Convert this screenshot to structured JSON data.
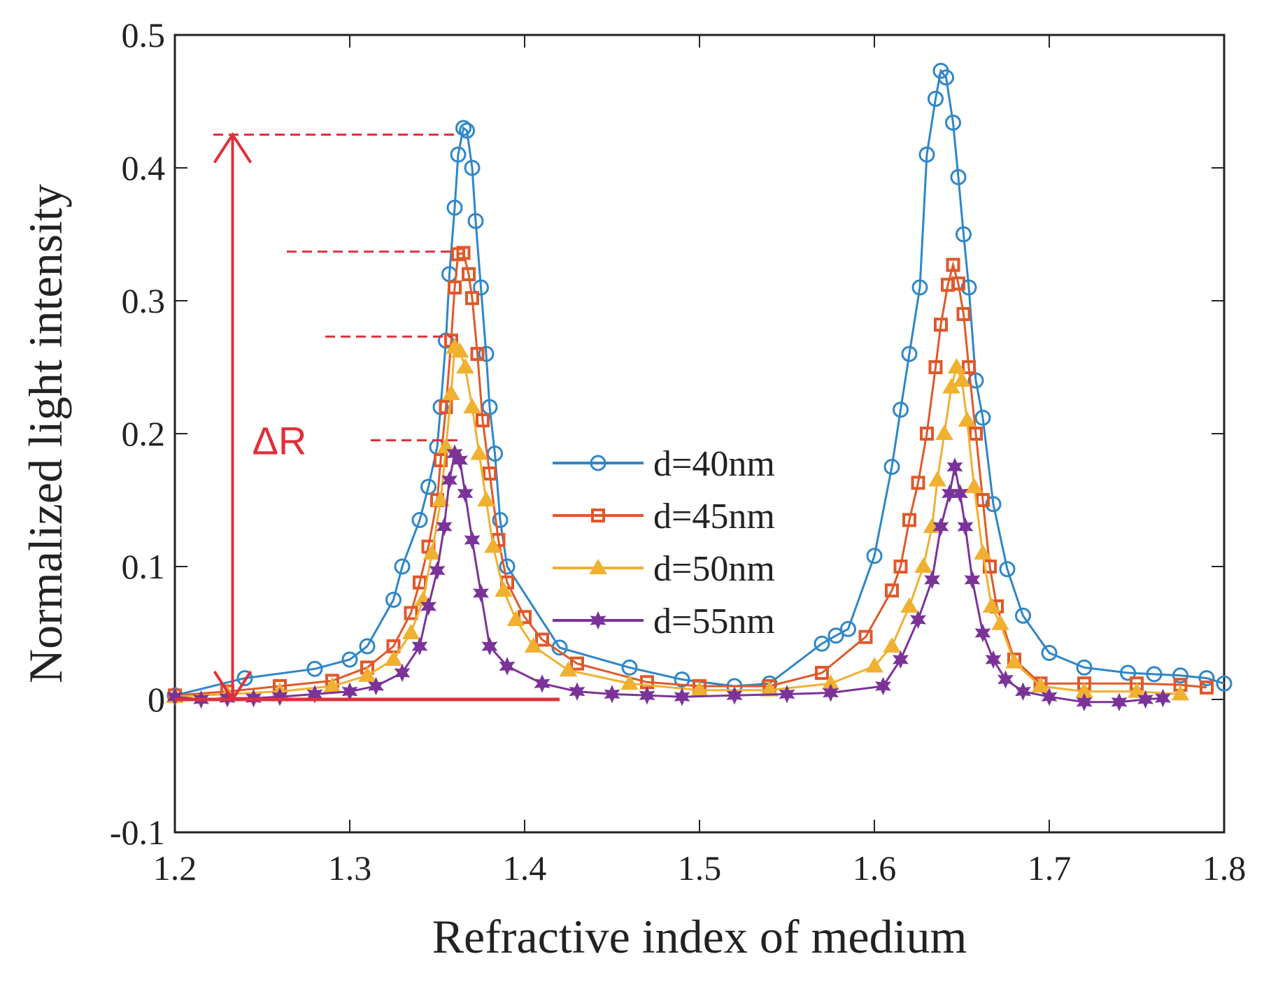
{
  "chart_data": {
    "type": "line",
    "title": "",
    "xlabel": "Refractive index of medium",
    "ylabel": "Normalized light intensity",
    "xlim": [
      1.2,
      1.8
    ],
    "ylim": [
      -0.1,
      0.5
    ],
    "x_ticks": [
      "1.2",
      "1.3",
      "1.4",
      "1.5",
      "1.6",
      "1.7",
      "1.8"
    ],
    "y_ticks": [
      "-0.1",
      "0",
      "0.1",
      "0.2",
      "0.3",
      "0.4",
      "0.5"
    ],
    "grid": false,
    "legend_position": "center",
    "series": [
      {
        "name": "d=40nm",
        "color": "#2e86c8",
        "marker": "circle",
        "points": [
          [
            1.2,
            0.003
          ],
          [
            1.24,
            0.016
          ],
          [
            1.28,
            0.023
          ],
          [
            1.3,
            0.03
          ],
          [
            1.31,
            0.04
          ],
          [
            1.325,
            0.075
          ],
          [
            1.33,
            0.1
          ],
          [
            1.34,
            0.135
          ],
          [
            1.345,
            0.16
          ],
          [
            1.35,
            0.19
          ],
          [
            1.352,
            0.22
          ],
          [
            1.355,
            0.27
          ],
          [
            1.357,
            0.32
          ],
          [
            1.36,
            0.37
          ],
          [
            1.362,
            0.41
          ],
          [
            1.365,
            0.43
          ],
          [
            1.367,
            0.428
          ],
          [
            1.37,
            0.4
          ],
          [
            1.372,
            0.36
          ],
          [
            1.375,
            0.31
          ],
          [
            1.378,
            0.26
          ],
          [
            1.38,
            0.22
          ],
          [
            1.383,
            0.185
          ],
          [
            1.386,
            0.135
          ],
          [
            1.39,
            0.1
          ],
          [
            1.42,
            0.039
          ],
          [
            1.46,
            0.024
          ],
          [
            1.49,
            0.015
          ],
          [
            1.52,
            0.01
          ],
          [
            1.54,
            0.012
          ],
          [
            1.57,
            0.042
          ],
          [
            1.578,
            0.048
          ],
          [
            1.585,
            0.053
          ],
          [
            1.6,
            0.108
          ],
          [
            1.61,
            0.175
          ],
          [
            1.615,
            0.218
          ],
          [
            1.62,
            0.26
          ],
          [
            1.626,
            0.31
          ],
          [
            1.63,
            0.41
          ],
          [
            1.635,
            0.452
          ],
          [
            1.638,
            0.473
          ],
          [
            1.641,
            0.468
          ],
          [
            1.645,
            0.434
          ],
          [
            1.648,
            0.393
          ],
          [
            1.651,
            0.35
          ],
          [
            1.654,
            0.31
          ],
          [
            1.658,
            0.24
          ],
          [
            1.662,
            0.212
          ],
          [
            1.668,
            0.147
          ],
          [
            1.676,
            0.098
          ],
          [
            1.685,
            0.063
          ],
          [
            1.7,
            0.035
          ],
          [
            1.72,
            0.024
          ],
          [
            1.745,
            0.02
          ],
          [
            1.76,
            0.019
          ],
          [
            1.775,
            0.018
          ],
          [
            1.79,
            0.016
          ],
          [
            1.8,
            0.012
          ]
        ]
      },
      {
        "name": "d=45nm",
        "color": "#e0582a",
        "marker": "square",
        "points": [
          [
            1.2,
            0.003
          ],
          [
            1.23,
            0.006
          ],
          [
            1.26,
            0.01
          ],
          [
            1.29,
            0.014
          ],
          [
            1.31,
            0.024
          ],
          [
            1.325,
            0.04
          ],
          [
            1.335,
            0.065
          ],
          [
            1.34,
            0.088
          ],
          [
            1.345,
            0.115
          ],
          [
            1.35,
            0.15
          ],
          [
            1.352,
            0.18
          ],
          [
            1.355,
            0.22
          ],
          [
            1.358,
            0.27
          ],
          [
            1.36,
            0.31
          ],
          [
            1.362,
            0.335
          ],
          [
            1.365,
            0.336
          ],
          [
            1.368,
            0.32
          ],
          [
            1.37,
            0.302
          ],
          [
            1.373,
            0.26
          ],
          [
            1.376,
            0.21
          ],
          [
            1.38,
            0.17
          ],
          [
            1.385,
            0.12
          ],
          [
            1.39,
            0.088
          ],
          [
            1.4,
            0.062
          ],
          [
            1.41,
            0.045
          ],
          [
            1.43,
            0.027
          ],
          [
            1.47,
            0.013
          ],
          [
            1.5,
            0.01
          ],
          [
            1.54,
            0.01
          ],
          [
            1.57,
            0.02
          ],
          [
            1.595,
            0.047
          ],
          [
            1.61,
            0.082
          ],
          [
            1.615,
            0.1
          ],
          [
            1.62,
            0.135
          ],
          [
            1.625,
            0.163
          ],
          [
            1.63,
            0.2
          ],
          [
            1.635,
            0.25
          ],
          [
            1.638,
            0.282
          ],
          [
            1.642,
            0.312
          ],
          [
            1.645,
            0.327
          ],
          [
            1.648,
            0.313
          ],
          [
            1.651,
            0.29
          ],
          [
            1.654,
            0.25
          ],
          [
            1.658,
            0.2
          ],
          [
            1.662,
            0.15
          ],
          [
            1.666,
            0.1
          ],
          [
            1.67,
            0.07
          ],
          [
            1.68,
            0.03
          ],
          [
            1.695,
            0.012
          ],
          [
            1.72,
            0.012
          ],
          [
            1.75,
            0.012
          ],
          [
            1.775,
            0.011
          ],
          [
            1.79,
            0.009
          ]
        ]
      },
      {
        "name": "d=50nm",
        "color": "#f0b030",
        "marker": "triangle",
        "points": [
          [
            1.2,
            0.002
          ],
          [
            1.23,
            0.004
          ],
          [
            1.26,
            0.006
          ],
          [
            1.29,
            0.01
          ],
          [
            1.31,
            0.018
          ],
          [
            1.325,
            0.03
          ],
          [
            1.335,
            0.05
          ],
          [
            1.342,
            0.075
          ],
          [
            1.347,
            0.11
          ],
          [
            1.352,
            0.15
          ],
          [
            1.355,
            0.19
          ],
          [
            1.358,
            0.23
          ],
          [
            1.36,
            0.265
          ],
          [
            1.363,
            0.262
          ],
          [
            1.366,
            0.25
          ],
          [
            1.37,
            0.22
          ],
          [
            1.374,
            0.185
          ],
          [
            1.378,
            0.15
          ],
          [
            1.382,
            0.115
          ],
          [
            1.388,
            0.082
          ],
          [
            1.395,
            0.06
          ],
          [
            1.405,
            0.04
          ],
          [
            1.425,
            0.022
          ],
          [
            1.46,
            0.012
          ],
          [
            1.5,
            0.007
          ],
          [
            1.54,
            0.007
          ],
          [
            1.575,
            0.012
          ],
          [
            1.6,
            0.025
          ],
          [
            1.61,
            0.04
          ],
          [
            1.62,
            0.07
          ],
          [
            1.628,
            0.1
          ],
          [
            1.633,
            0.13
          ],
          [
            1.636,
            0.165
          ],
          [
            1.64,
            0.2
          ],
          [
            1.644,
            0.235
          ],
          [
            1.647,
            0.25
          ],
          [
            1.65,
            0.24
          ],
          [
            1.653,
            0.21
          ],
          [
            1.657,
            0.16
          ],
          [
            1.662,
            0.11
          ],
          [
            1.667,
            0.07
          ],
          [
            1.672,
            0.057
          ],
          [
            1.68,
            0.028
          ],
          [
            1.695,
            0.01
          ],
          [
            1.72,
            0.006
          ],
          [
            1.75,
            0.006
          ],
          [
            1.775,
            0.004
          ]
        ]
      },
      {
        "name": "d=55nm",
        "color": "#7b3399",
        "marker": "star",
        "points": [
          [
            1.2,
            0.002
          ],
          [
            1.215,
            0.0
          ],
          [
            1.23,
            0.001
          ],
          [
            1.245,
            0.001
          ],
          [
            1.26,
            0.002
          ],
          [
            1.28,
            0.004
          ],
          [
            1.3,
            0.006
          ],
          [
            1.315,
            0.01
          ],
          [
            1.33,
            0.02
          ],
          [
            1.34,
            0.04
          ],
          [
            1.345,
            0.07
          ],
          [
            1.35,
            0.097
          ],
          [
            1.354,
            0.13
          ],
          [
            1.357,
            0.165
          ],
          [
            1.36,
            0.185
          ],
          [
            1.363,
            0.18
          ],
          [
            1.366,
            0.155
          ],
          [
            1.37,
            0.12
          ],
          [
            1.375,
            0.08
          ],
          [
            1.38,
            0.04
          ],
          [
            1.39,
            0.025
          ],
          [
            1.41,
            0.012
          ],
          [
            1.43,
            0.006
          ],
          [
            1.45,
            0.004
          ],
          [
            1.47,
            0.003
          ],
          [
            1.49,
            0.002
          ],
          [
            1.52,
            0.003
          ],
          [
            1.55,
            0.004
          ],
          [
            1.575,
            0.005
          ],
          [
            1.605,
            0.01
          ],
          [
            1.615,
            0.03
          ],
          [
            1.625,
            0.06
          ],
          [
            1.633,
            0.09
          ],
          [
            1.638,
            0.13
          ],
          [
            1.643,
            0.155
          ],
          [
            1.646,
            0.175
          ],
          [
            1.649,
            0.155
          ],
          [
            1.652,
            0.13
          ],
          [
            1.656,
            0.09
          ],
          [
            1.662,
            0.05
          ],
          [
            1.668,
            0.03
          ],
          [
            1.675,
            0.015
          ],
          [
            1.685,
            0.006
          ],
          [
            1.7,
            0.002
          ],
          [
            1.72,
            -0.002
          ],
          [
            1.74,
            -0.002
          ],
          [
            1.755,
            0.0
          ],
          [
            1.765,
            0.001
          ]
        ]
      }
    ],
    "annotations": {
      "delta_label": "ΔR",
      "color": "#e0303a",
      "arrow": {
        "x": 1.233,
        "y_from": 0.0,
        "y_to": 0.425
      },
      "baseline": {
        "y": 0.0,
        "x_from": 1.2,
        "x_to": 1.42
      },
      "peak_dashes": [
        {
          "y": 0.425,
          "x_from": 1.222,
          "x_to": 1.362
        },
        {
          "y": 0.337,
          "x_from": 1.264,
          "x_to": 1.36
        },
        {
          "y": 0.273,
          "x_from": 1.286,
          "x_to": 1.358
        },
        {
          "y": 0.195,
          "x_from": 1.312,
          "x_to": 1.362
        }
      ]
    }
  }
}
